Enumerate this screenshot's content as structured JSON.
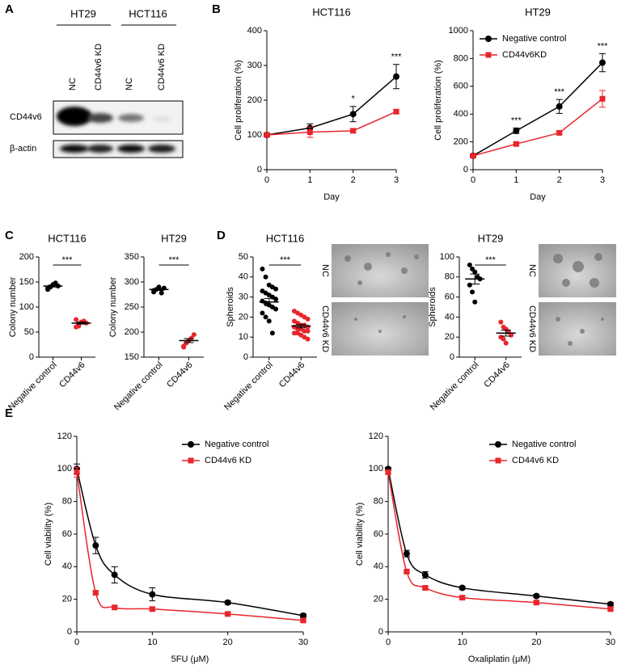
{
  "panel_labels": [
    "A",
    "B",
    "C",
    "D",
    "E"
  ],
  "blot": {
    "cell_lines": [
      "HT29",
      "HCT116"
    ],
    "lanes": [
      "NC",
      "CD44v6 KD",
      "NC",
      "CD44v6 KD"
    ],
    "rows": [
      "CD44v6",
      "β-actin"
    ]
  },
  "spheroid_images": {
    "labels": [
      "NC",
      "CD44v6 KD"
    ]
  },
  "chart_data": [
    {
      "type": "line",
      "title": "HCT116",
      "xlabel": "Day",
      "ylabel": "Cell proliferation (%)",
      "x": [
        0,
        1,
        2,
        3
      ],
      "xlim": [
        0,
        3
      ],
      "xticks": [
        0,
        1,
        2,
        3
      ],
      "ylim": [
        0,
        400
      ],
      "yticks": [
        0,
        100,
        200,
        300,
        400
      ],
      "series": [
        {
          "name": "Negative control",
          "color": "#000000",
          "marker": "circle",
          "values": [
            100,
            120,
            160,
            268
          ],
          "errors": [
            5,
            12,
            22,
            35
          ]
        },
        {
          "name": "CD44v6KD",
          "color": "#e8262b",
          "marker": "square",
          "values": [
            100,
            108,
            112,
            167
          ],
          "errors": [
            5,
            15,
            5,
            5
          ]
        }
      ],
      "annotations": [
        {
          "text": "*",
          "x": 2
        },
        {
          "text": "***",
          "x": 3
        }
      ]
    },
    {
      "type": "line",
      "title": "HT29",
      "xlabel": "Day",
      "ylabel": "Cell proliferation (%)",
      "x": [
        0,
        1,
        2,
        3
      ],
      "xlim": [
        0,
        3
      ],
      "xticks": [
        0,
        1,
        2,
        3
      ],
      "ylim": [
        0,
        1000
      ],
      "yticks": [
        0,
        200,
        400,
        600,
        800,
        1000
      ],
      "series": [
        {
          "name": "Negative control",
          "color": "#000000",
          "marker": "circle",
          "values": [
            100,
            280,
            455,
            770
          ],
          "errors": [
            10,
            20,
            50,
            65
          ]
        },
        {
          "name": "CD44v6KD",
          "color": "#e8262b",
          "marker": "square",
          "values": [
            100,
            185,
            265,
            510
          ],
          "errors": [
            5,
            10,
            10,
            60
          ]
        }
      ],
      "legend": "upper left",
      "annotations": [
        {
          "text": "***",
          "x": 1
        },
        {
          "text": "***",
          "x": 2
        },
        {
          "text": "***",
          "x": 3
        }
      ]
    },
    {
      "type": "dot",
      "title": "HCT116",
      "ylabel": "Colony number",
      "categories": [
        "Negative control",
        "CD44v6"
      ],
      "ylim": [
        0,
        200
      ],
      "yticks": [
        0,
        50,
        100,
        150,
        200
      ],
      "colors": [
        "#000000",
        "#e8262b"
      ],
      "points": [
        [
          135,
          140,
          145,
          148,
          142,
          138
        ],
        [
          60,
          65,
          70,
          72,
          68,
          75,
          62
        ]
      ],
      "means": [
        142,
        68
      ],
      "sems": [
        2,
        2
      ],
      "annotation": "***"
    },
    {
      "type": "dot",
      "title": "HT29",
      "ylabel": "Colony number",
      "categories": [
        "Negative control",
        "CD44v6"
      ],
      "ylim": [
        150,
        350
      ],
      "yticks": [
        150,
        200,
        250,
        300,
        350
      ],
      "colors": [
        "#000000",
        "#e8262b"
      ],
      "points": [
        [
          280,
          285,
          290,
          278,
          288,
          283
        ],
        [
          172,
          178,
          183,
          188,
          195,
          170
        ]
      ],
      "means": [
        285,
        183
      ],
      "sems": [
        2,
        4
      ],
      "annotation": "***"
    },
    {
      "type": "dot",
      "title": "HCT116",
      "ylabel": "Spheroids",
      "categories": [
        "Negative control",
        "CD44v6"
      ],
      "ylim": [
        0,
        50
      ],
      "yticks": [
        0,
        10,
        20,
        30,
        40,
        50
      ],
      "colors": [
        "#000000",
        "#e8262b"
      ],
      "points": [
        [
          44,
          40,
          36,
          35,
          34,
          33,
          32,
          31,
          30,
          29,
          28,
          27,
          26,
          25,
          24,
          22,
          20,
          18,
          12
        ],
        [
          23,
          22,
          21,
          20,
          19,
          18,
          17,
          16,
          16,
          15,
          15,
          14,
          14,
          13,
          13,
          12,
          12,
          11,
          10,
          9
        ]
      ],
      "means": [
        27.5,
        15.5
      ],
      "sems": [
        1.8,
        0.9
      ],
      "annotation": "***"
    },
    {
      "type": "dot",
      "title": "HT29",
      "ylabel": "Spheroids",
      "categories": [
        "Negative control",
        "CD44v6"
      ],
      "ylim": [
        0,
        100
      ],
      "yticks": [
        0,
        20,
        40,
        60,
        80,
        100
      ],
      "colors": [
        "#000000",
        "#e8262b"
      ],
      "points": [
        [
          92,
          88,
          85,
          80,
          78,
          72,
          65,
          55
        ],
        [
          35,
          30,
          28,
          25,
          22,
          20,
          18,
          14
        ]
      ],
      "means": [
        78,
        24
      ],
      "sems": [
        5,
        3
      ],
      "annotation": "***"
    },
    {
      "type": "dose_response",
      "xlabel": "5FU (μM)",
      "ylabel": "Cell viability (%)",
      "x": [
        0,
        2.5,
        5,
        10,
        20,
        30
      ],
      "xlim": [
        0,
        30
      ],
      "xticks": [
        0,
        10,
        20,
        30
      ],
      "ylim": [
        0,
        120
      ],
      "yticks": [
        0,
        20,
        40,
        60,
        80,
        100,
        120
      ],
      "series": [
        {
          "name": "Negative control",
          "color": "#000000",
          "marker": "circle",
          "values": [
            100,
            53,
            35,
            23,
            18,
            10
          ],
          "errors": [
            3,
            5,
            5,
            4,
            1,
            1
          ]
        },
        {
          "name": "CD44v6 KD",
          "color": "#e8262b",
          "marker": "square",
          "values": [
            98,
            24,
            15,
            14,
            11,
            7
          ],
          "errors": [
            3,
            1,
            1,
            1,
            1,
            1
          ]
        }
      ],
      "legend": "upper right"
    },
    {
      "type": "dose_response",
      "xlabel": "Oxaliplatin (μM)",
      "ylabel": "Cell viability (%)",
      "x": [
        0,
        2.5,
        5,
        10,
        20,
        30
      ],
      "xlim": [
        0,
        30
      ],
      "xticks": [
        0,
        10,
        20,
        30
      ],
      "ylim": [
        0,
        120
      ],
      "yticks": [
        0,
        20,
        40,
        60,
        80,
        100,
        120
      ],
      "series": [
        {
          "name": "Negative control",
          "color": "#000000",
          "marker": "circle",
          "values": [
            100,
            48,
            35,
            27,
            22,
            17
          ],
          "errors": [
            1,
            2,
            2,
            1,
            1,
            1
          ]
        },
        {
          "name": "CD44v6 KD",
          "color": "#e8262b",
          "marker": "square",
          "values": [
            98,
            37,
            27,
            21,
            18,
            14
          ],
          "errors": [
            1,
            1,
            1,
            1,
            1,
            1
          ]
        }
      ],
      "legend": "upper right"
    }
  ]
}
